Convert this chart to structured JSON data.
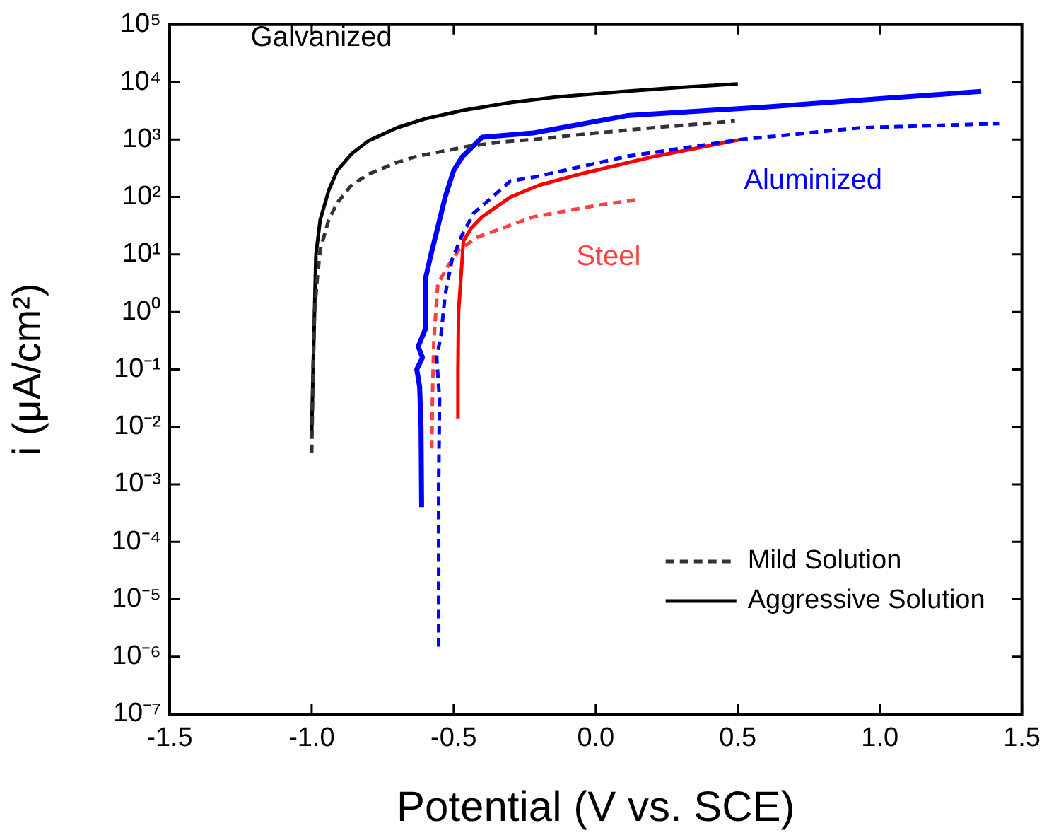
{
  "chart_data": {
    "type": "line",
    "xlabel": "Potential (V vs. SCE)",
    "ylabel": "i (μA/cm²)",
    "log": "y",
    "legend": "bottom right",
    "xlim": [
      -1.5,
      1.5
    ],
    "xticks": [
      -1.5,
      {
        "value": -1,
        "label": "-1.0"
      },
      -0.5,
      {
        "value": 0,
        "label": "0.0"
      },
      0.5,
      {
        "value": 1,
        "label": "1.0"
      },
      1.5
    ],
    "ylim": [
      1e-07,
      100000
    ],
    "yticks": [
      {
        "value": 1e-07,
        "label": "10⁻⁷"
      },
      {
        "value": 1e-06,
        "label": "10⁻⁶"
      },
      {
        "value": 1e-05,
        "label": "10⁻⁵"
      },
      {
        "value": 0.0001,
        "label": "10⁻⁴"
      },
      {
        "value": 0.001,
        "label": "10⁻³"
      },
      {
        "value": 0.01,
        "label": "10⁻²"
      },
      {
        "value": 0.1,
        "label": "10⁻¹"
      },
      {
        "value": 1,
        "label": "10⁰"
      },
      {
        "value": 10,
        "label": "10¹"
      },
      {
        "value": 100,
        "label": "10²"
      },
      {
        "value": 1000,
        "label": "10³"
      },
      {
        "value": 10000,
        "label": "10⁴"
      },
      {
        "value": 100000,
        "label": "10⁵"
      }
    ],
    "series": [
      {
        "name": "Mild Solution",
        "color": "#333333",
        "line_style": "dashed",
        "x": [
          -1.0,
          -0.995,
          -0.99,
          -0.98,
          -0.97,
          -0.94,
          -0.91,
          -0.86,
          -0.8,
          -0.7,
          -0.63,
          -0.45,
          -0.33,
          -0.22,
          0,
          0.2,
          0.49
        ],
        "values": [
          0.0035,
          0.1,
          1,
          4,
          12,
          40,
          79,
          160,
          250,
          400,
          510,
          760,
          910,
          1000,
          1300,
          1600,
          2100
        ]
      },
      {
        "name": "Aggressive Solution",
        "color": "#000000",
        "line_style": "solid",
        "x": [
          -1.0,
          -0.995,
          -0.99,
          -0.985,
          -0.97,
          -0.94,
          -0.91,
          -0.86,
          -0.8,
          -0.7,
          -0.6,
          -0.47,
          -0.3,
          -0.14,
          0.1,
          0.3,
          0.5
        ],
        "values": [
          0.008,
          0.1,
          1,
          10,
          40,
          130,
          290,
          560,
          950,
          1600,
          2300,
          3200,
          4400,
          5500,
          6900,
          8100,
          9300
        ]
      },
      {
        "color": "#0000ff",
        "line_style": "solid",
        "x": [
          -0.613,
          -0.615,
          -0.62,
          -0.63,
          -0.61,
          -0.625,
          -0.6,
          -0.6,
          -0.58,
          -0.556,
          -0.53,
          -0.5,
          -0.47,
          -0.4,
          -0.22,
          0.11,
          0.6,
          1.357
        ],
        "values": [
          0.0004,
          0.01,
          0.05,
          0.1,
          0.16,
          0.25,
          0.5,
          3.7,
          10,
          30,
          100,
          290,
          500,
          1100,
          1300,
          2600,
          3700,
          6900
        ]
      },
      {
        "color": "#0000ff",
        "line_style": "dashed",
        "x": [
          -0.553,
          -0.553,
          -0.55,
          -0.56,
          -0.545,
          -0.53,
          -0.506,
          -0.47,
          -0.43,
          -0.3,
          -0.22,
          0.11,
          0.51,
          0.93,
          1.42
        ],
        "values": [
          1.5e-06,
          0.001,
          0.03,
          0.16,
          0.39,
          2,
          8.1,
          22,
          52,
          190,
          220,
          510,
          1000,
          1600,
          1900
        ]
      },
      {
        "color": "#ff0000",
        "line_style": "solid",
        "x": [
          -0.485,
          -0.485,
          -0.483,
          -0.475,
          -0.466,
          -0.44,
          -0.4,
          -0.3,
          -0.2,
          -0.056,
          0.2,
          0.51
        ],
        "values": [
          0.014,
          0.1,
          1,
          3.7,
          17,
          28,
          45,
          100,
          160,
          250,
          500,
          1000
        ]
      },
      {
        "color": "#ff4040",
        "line_style": "dashed",
        "x": [
          -0.577,
          -0.575,
          -0.57,
          -0.556,
          -0.52,
          -0.482,
          -0.416,
          -0.22,
          0,
          0.14
        ],
        "values": [
          0.0042,
          0.032,
          0.32,
          3.1,
          6.3,
          12,
          20,
          45,
          71,
          89
        ]
      }
    ],
    "annotations": [
      "Galvanized",
      "Aluminized",
      "Steel"
    ]
  }
}
